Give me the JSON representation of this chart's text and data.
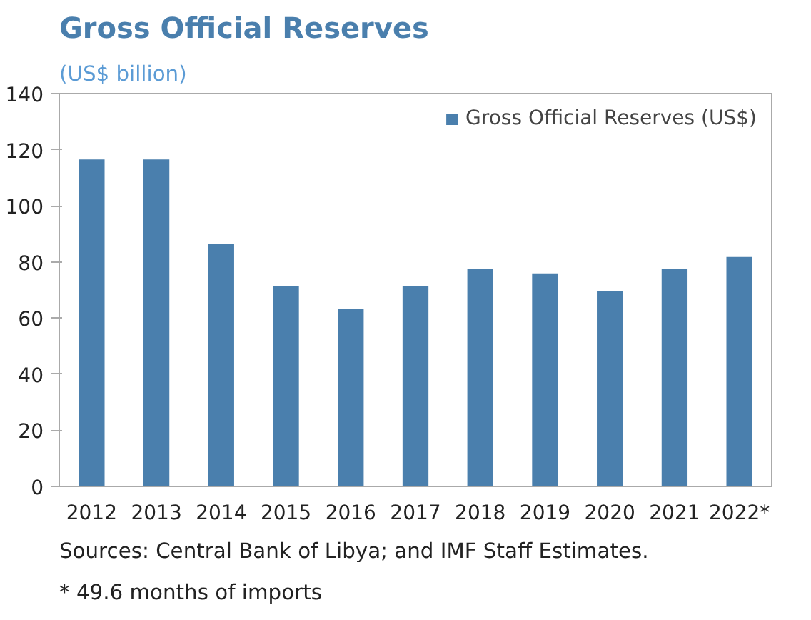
{
  "chart_data": {
    "type": "bar",
    "title": "Gross Official Reserves",
    "subtitle": "(US$ billion)",
    "categories": [
      "2012",
      "2013",
      "2014",
      "2015",
      "2016",
      "2017",
      "2018",
      "2019",
      "2020",
      "2021",
      "2022*"
    ],
    "series": [
      {
        "name": "Gross Official Reserves (US$)",
        "color": "#4a7fad",
        "values": [
          116.5,
          116.5,
          86.4,
          71.3,
          63.3,
          71.3,
          77.6,
          75.9,
          69.6,
          77.6,
          81.8
        ]
      }
    ],
    "ylim": [
      0,
      140
    ],
    "yticks": [
      0,
      20,
      40,
      60,
      80,
      100,
      120,
      140
    ],
    "grid": false,
    "legend": "top right",
    "annotations": [
      "Sources: Central Bank of Libya; and IMF Staff Estimates.",
      "* 49.6 months of imports"
    ]
  }
}
